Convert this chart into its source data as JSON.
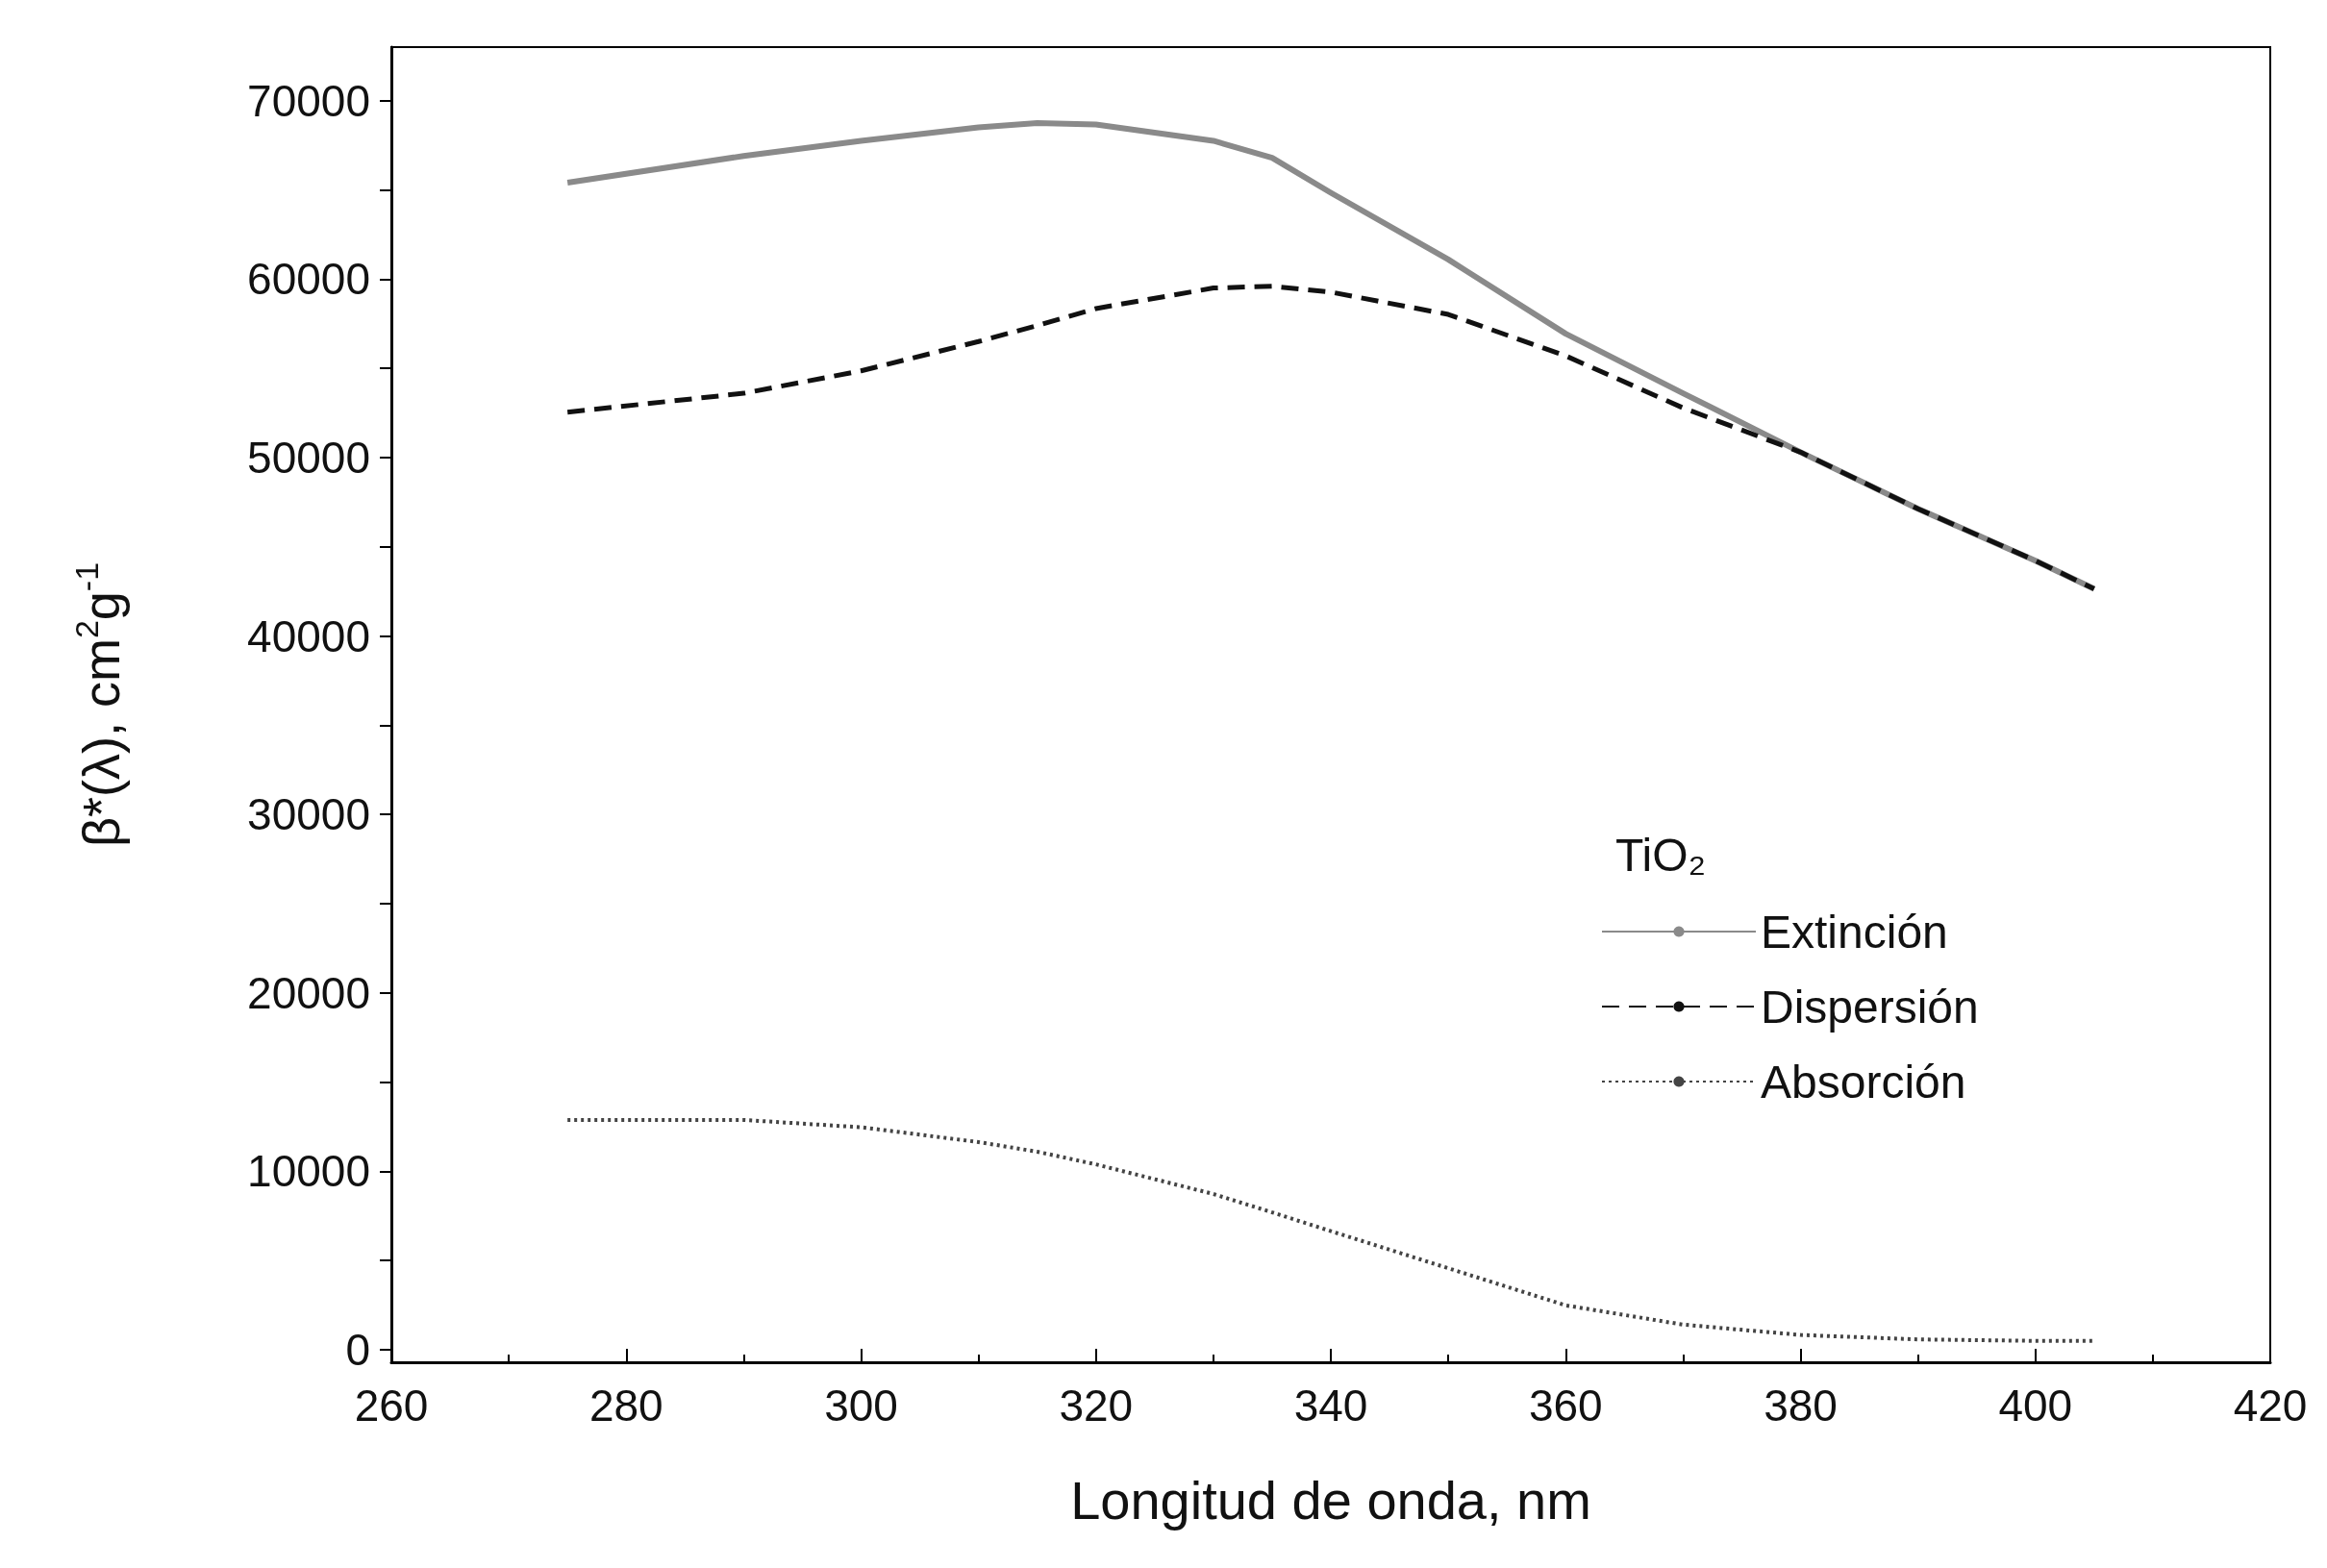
{
  "chart_data": {
    "type": "line",
    "xlabel": "Longitud de onda, nm",
    "ylabel": "β*(λ), cm$^{2}$g$^{-1}$",
    "legend_title": "TiO₂",
    "xlim": [
      260,
      420
    ],
    "xticks": [
      260,
      280,
      300,
      320,
      340,
      360,
      380,
      400,
      420
    ],
    "ylim": [
      -700,
      73000
    ],
    "yticks": [
      0,
      10000,
      20000,
      30000,
      40000,
      50000,
      60000,
      70000
    ],
    "grid": false,
    "legend": "right",
    "marker": "none",
    "x": [
      275,
      290,
      300,
      310,
      315,
      320,
      330,
      335,
      340,
      350,
      360,
      370,
      380,
      390,
      400,
      405
    ],
    "series": [
      {
        "name": "Extinción",
        "color": "#8a8a8a",
        "line_style": "solid",
        "values": [
          65400,
          66900,
          67750,
          68500,
          68750,
          68660,
          67750,
          66800,
          64840,
          61100,
          56940,
          53600,
          50300,
          47130,
          44220,
          42640
        ]
      },
      {
        "name": "Dispersión",
        "color": "#111111",
        "line_style": "dashed",
        "values": [
          52540,
          53600,
          54860,
          56500,
          57400,
          58350,
          59500,
          59600,
          59270,
          58020,
          55700,
          52780,
          50300,
          47130,
          44220,
          42640
        ]
      },
      {
        "name": "Absorción",
        "color": "#444444",
        "line_style": "dotted",
        "values": [
          12880,
          12880,
          12470,
          11640,
          11100,
          10390,
          8730,
          7700,
          6650,
          4570,
          2490,
          1410,
          830,
          580,
          500,
          500
        ]
      }
    ]
  }
}
